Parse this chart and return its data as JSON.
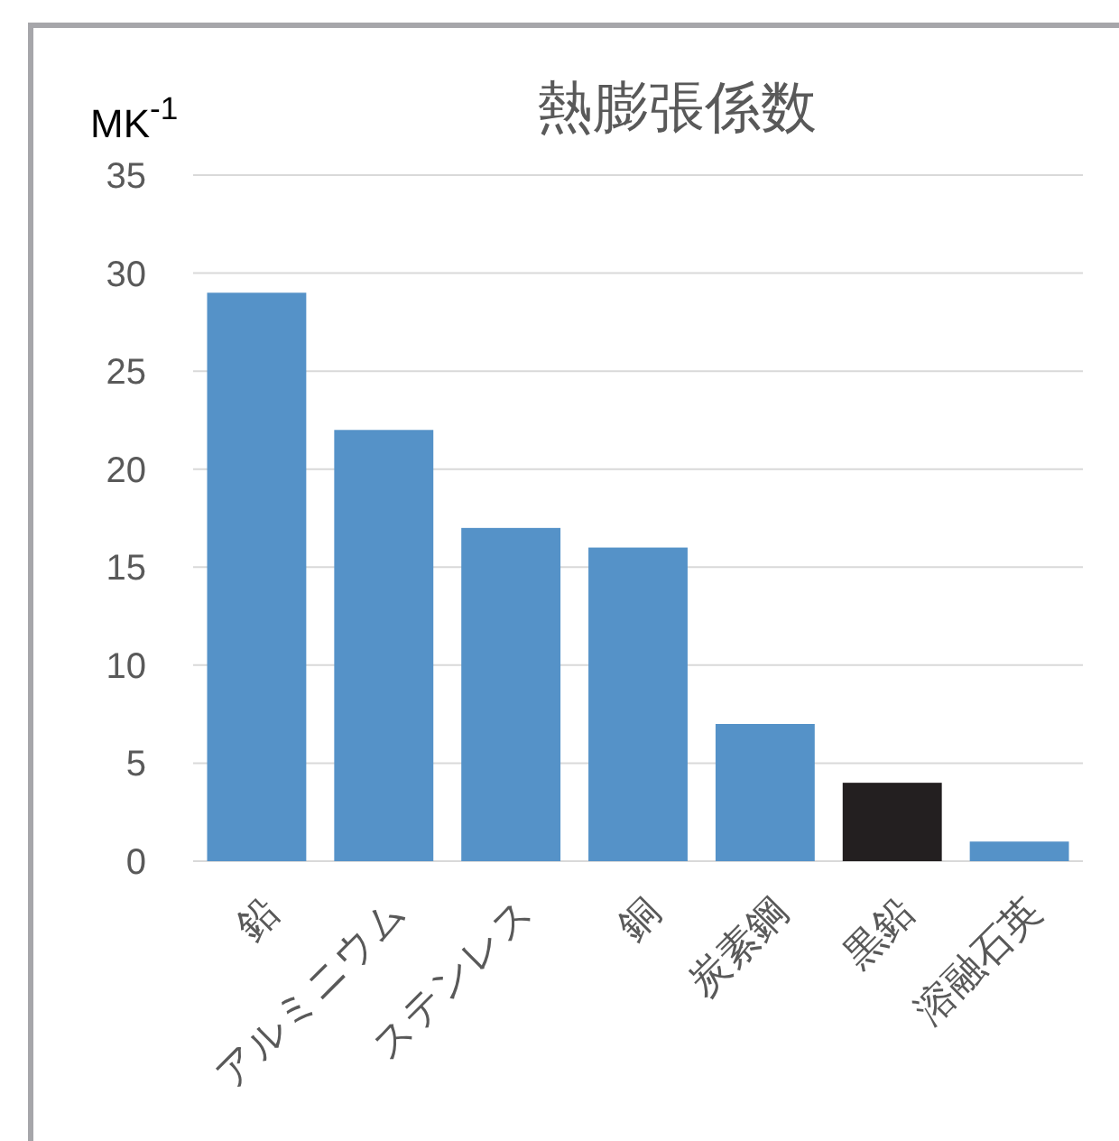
{
  "chart_data": {
    "type": "bar",
    "title": "熱膨張係数",
    "ylabel": "MK$^{-1}$",
    "categories": [
      "鉛",
      "アルミニウム",
      "ステンレス",
      "銅",
      "炭素鋼",
      "黒鉛",
      "溶融石英"
    ],
    "values": [
      29,
      22,
      17,
      16,
      7,
      4,
      1
    ],
    "colors": [
      "#5592c8",
      "#5592c8",
      "#5592c8",
      "#5592c8",
      "#5592c8",
      "#231f20",
      "#5592c8"
    ],
    "ylim": [
      0,
      35
    ],
    "yticks": [
      0,
      5,
      10,
      15,
      20,
      25,
      30,
      35
    ],
    "grid": "y"
  }
}
